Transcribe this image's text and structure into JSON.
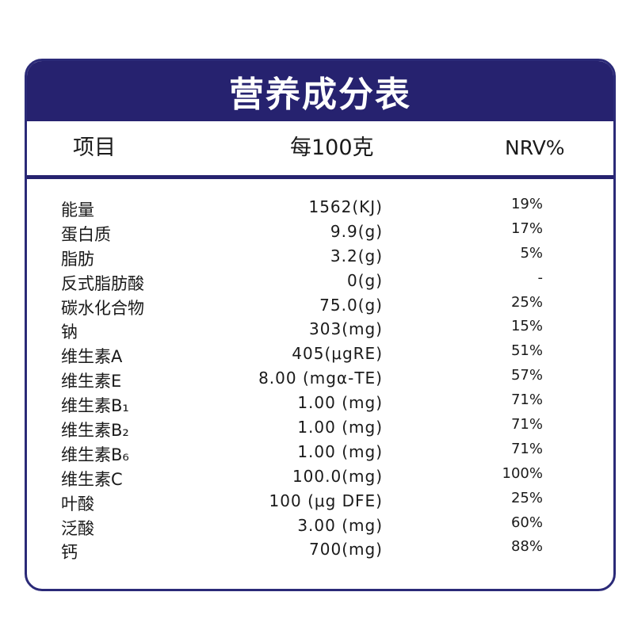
{
  "title": "营养成分表",
  "header": {
    "item": "项目",
    "per100g": "每100克",
    "nrv": "NRV%"
  },
  "rows": [
    {
      "name": "能量",
      "value": "1562(KJ)",
      "nrv": "19%"
    },
    {
      "name": "蛋白质",
      "value": "9.9(g)",
      "nrv": "17%"
    },
    {
      "name": "脂肪",
      "value": "3.2(g)",
      "nrv": "5%"
    },
    {
      "name": "反式脂肪酸",
      "value": "0(g)",
      "nrv": "-"
    },
    {
      "name": "碳水化合物",
      "value": "75.0(g)",
      "nrv": "25%"
    },
    {
      "name": "钠",
      "value": "303(mg)",
      "nrv": "15%"
    },
    {
      "name": "维生素A",
      "value": "405(μgRE)",
      "nrv": "51%"
    },
    {
      "name": "维生素E",
      "value": "8.00 (mgα-TE)",
      "nrv": "57%"
    },
    {
      "name": "维生素B₁",
      "value": "1.00 (mg)",
      "nrv": "71%"
    },
    {
      "name": "维生素B₂",
      "value": "1.00 (mg)",
      "nrv": "71%"
    },
    {
      "name": "维生素B₆",
      "value": "1.00 (mg)",
      "nrv": "71%"
    },
    {
      "name": "维生素C",
      "value": "100.0(mg)",
      "nrv": "100%"
    },
    {
      "name": "叶酸",
      "value": "100 (μg DFE)",
      "nrv": "25%"
    },
    {
      "name": "泛酸",
      "value": "3.00 (mg)",
      "nrv": "60%"
    },
    {
      "name": "钙",
      "value": "700(mg)",
      "nrv": "88%"
    }
  ],
  "colors": {
    "frame": "#2b2a78",
    "title_bar": "#26226f",
    "title_text": "#ffffff"
  }
}
